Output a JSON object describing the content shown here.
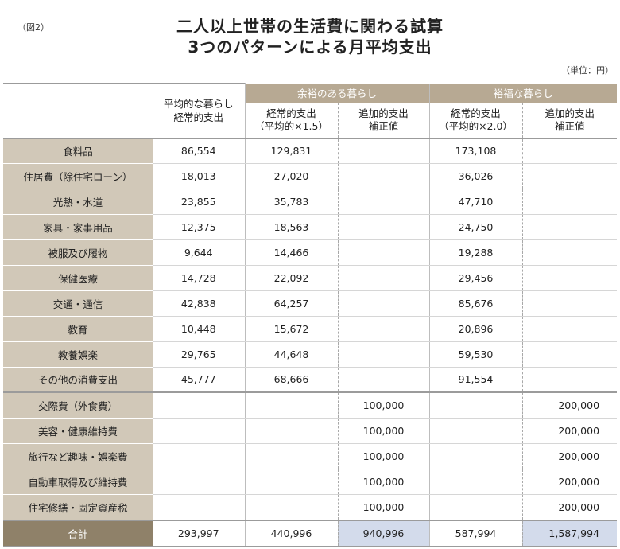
{
  "figure_label": "（図2）",
  "title_line1": "二人以上世帯の生活費に関わる試算",
  "title_line2": "3つのパターンによる月平均支出",
  "unit": "（単位：円）",
  "headers": {
    "avg": "平均的な暮らし\n経常的支出",
    "group_yoyu": "余裕のある暮らし",
    "group_yufuku": "裕福な暮らし",
    "keijo_15": "経常的支出\n（平均的×1.5）",
    "tsuika_1": "追加的支出\n補正値",
    "keijo_20": "経常的支出\n（平均的×2.0）",
    "tsuika_2": "追加的支出\n補正値"
  },
  "rows": [
    {
      "label": "食料品",
      "avg": "86,554",
      "k15": "129,831",
      "t1": "",
      "k20": "173,108",
      "t2": ""
    },
    {
      "label": "住居費（除住宅ローン）",
      "avg": "18,013",
      "k15": "27,020",
      "t1": "",
      "k20": "36,026",
      "t2": ""
    },
    {
      "label": "光熱・水道",
      "avg": "23,855",
      "k15": "35,783",
      "t1": "",
      "k20": "47,710",
      "t2": ""
    },
    {
      "label": "家具・家事用品",
      "avg": "12,375",
      "k15": "18,563",
      "t1": "",
      "k20": "24,750",
      "t2": ""
    },
    {
      "label": "被服及び履物",
      "avg": "9,644",
      "k15": "14,466",
      "t1": "",
      "k20": "19,288",
      "t2": ""
    },
    {
      "label": "保健医療",
      "avg": "14,728",
      "k15": "22,092",
      "t1": "",
      "k20": "29,456",
      "t2": ""
    },
    {
      "label": "交通・通信",
      "avg": "42,838",
      "k15": "64,257",
      "t1": "",
      "k20": "85,676",
      "t2": ""
    },
    {
      "label": "教育",
      "avg": "10,448",
      "k15": "15,672",
      "t1": "",
      "k20": "20,896",
      "t2": ""
    },
    {
      "label": "教養娯楽",
      "avg": "29,765",
      "k15": "44,648",
      "t1": "",
      "k20": "59,530",
      "t2": ""
    },
    {
      "label": "その他の消費支出",
      "avg": "45,777",
      "k15": "68,666",
      "t1": "",
      "k20": "91,554",
      "t2": ""
    },
    {
      "label": "交際費（外食費）",
      "avg": "",
      "k15": "",
      "t1": "100,000",
      "k20": "",
      "t2": "200,000"
    },
    {
      "label": "美容・健康維持費",
      "avg": "",
      "k15": "",
      "t1": "100,000",
      "k20": "",
      "t2": "200,000"
    },
    {
      "label": "旅行など趣味・娯楽費",
      "avg": "",
      "k15": "",
      "t1": "100,000",
      "k20": "",
      "t2": "200,000"
    },
    {
      "label": "自動車取得及び維持費",
      "avg": "",
      "k15": "",
      "t1": "100,000",
      "k20": "",
      "t2": "200,000"
    },
    {
      "label": "住宅修繕・固定資産税",
      "avg": "",
      "k15": "",
      "t1": "100,000",
      "k20": "",
      "t2": "200,000"
    }
  ],
  "total": {
    "label": "合計",
    "avg": "293,997",
    "k15": "440,996",
    "t1": "940,996",
    "k20": "587,994",
    "t2": "1,587,994"
  }
}
